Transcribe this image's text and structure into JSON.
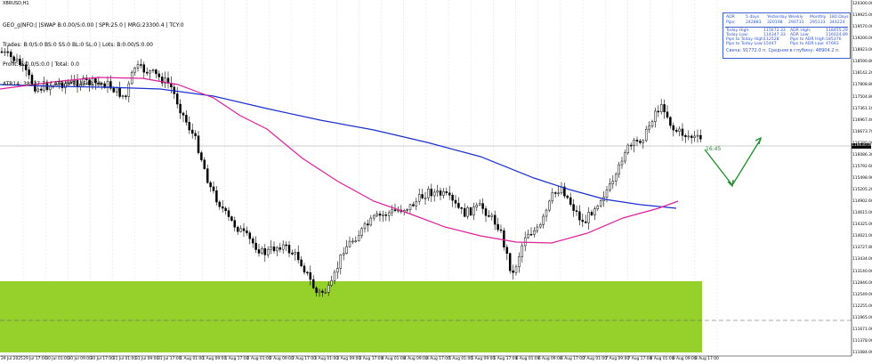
{
  "window": {
    "title": "XBRUSD,H1"
  },
  "info_lines": [
    "GEO_g|NFO:| |SWAP B:0.00/S:0.00 | SPR:25.0 | MRG:23300.4 | TCY:0",
    "Trades: B:0/S:0 BS:0 SS:0 BL:0 SL:0 | Lots: B:0.00/S:0.00",
    "Profit: B:0.0/S:0.0 | Total: 0.0",
    "ATR14: 38537.71 | ATR/SPR: 1543.51"
  ],
  "stats_table": {
    "headers": [
      "ADR",
      "5 days",
      "Yesterday",
      "Weekly",
      "Monthly",
      "180 Days"
    ],
    "pips": [
      "Pips:",
      "242883",
      "320198",
      "290731",
      "295133",
      "344224"
    ],
    "rows": [
      [
        "Today High:",
        "115672.33",
        "ADR High:",
        "118455.29"
      ],
      [
        "Today Low:",
        "114347.33",
        "ADR Low:",
        "116024.89"
      ],
      [
        "Pips to Today High:",
        "112528",
        "Pips to ADR High:",
        "185376"
      ],
      [
        "Pips to Today Low:",
        "15447",
        "Pips to ADR Low:",
        "47693"
      ]
    ],
    "footer": "Свеча: 91772.0 п. Средняя в глубину: 48904.2 п."
  },
  "price_axis": [
    "120300.00",
    "119925.00",
    "119570.00",
    "119200.00",
    "118923.00",
    "118590.80",
    "118142.20",
    "117808.80",
    "117504.80",
    "117361.10",
    "116967.40",
    "116673.70",
    "116380.00",
    "116086.30",
    "115792.60",
    "115498.90",
    "115205.20",
    "114902.60",
    "114615.00",
    "114325.00",
    "114021.00",
    "113727.80",
    "113434.00",
    "113140.00",
    "112846.00",
    "112549.00",
    "112255.00",
    "111965.00",
    "111671.00",
    "111378.00",
    "111084.00"
  ],
  "current_price_tag": "116630.00",
  "time_axis": [
    "29 Jul 2025",
    "29 Jul 17:00",
    "30 Jul 01:00",
    "30 Jul 09:00",
    "30 Jul 17:00",
    "31 Jul 01:00",
    "31 Jul 09:00",
    "31 Jul 17:00",
    "1 Aug 01:00",
    "1 Aug 09:00",
    "1 Aug 17:00",
    "2 Aug 01:00",
    "2 Aug 09:00",
    "2 Aug 17:00",
    "3 Aug 01:00",
    "3 Aug 09:00",
    "3 Aug 17:00",
    "4 Aug 01:00",
    "4 Aug 09:00",
    "4 Aug 17:00",
    "5 Aug 01:00",
    "5 Aug 09:00",
    "5 Aug 17:00",
    "6 Aug 01:00",
    "6 Aug 09:00",
    "6 Aug 17:00",
    "7 Aug 01:00",
    "7 Aug 09:00",
    "7 Aug 17:00",
    "8 Aug 01:00",
    "8 Aug 09:00",
    "8 Aug 17:00"
  ],
  "arrow_label": "16:45",
  "colors": {
    "ma_fast": "#e0209a",
    "ma_slow": "#1a2fcf",
    "zone": "#95d12a",
    "arrow": "#1a8f2a",
    "candles": "#000000"
  }
}
